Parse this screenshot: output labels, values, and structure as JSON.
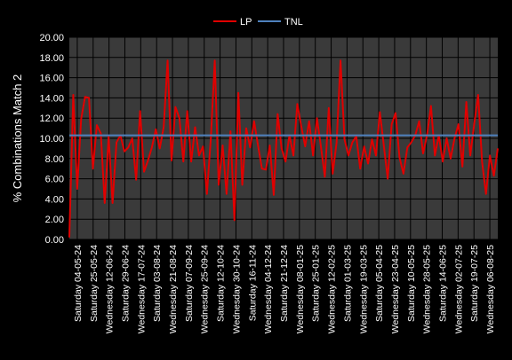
{
  "chart_data": {
    "type": "line",
    "title": "",
    "ylabel": "% Combinations Match 2",
    "xlabel": "",
    "ylim": [
      0,
      20
    ],
    "y_ticks": [
      "0.00",
      "2.00",
      "4.00",
      "6.00",
      "8.00",
      "10.00",
      "12.00",
      "14.00",
      "16.00",
      "18.00",
      "20.00"
    ],
    "x_tick_labels": [
      "Saturday 04-05-24",
      "Saturday 25-05-24",
      "Wednesday 12-06-24",
      "Saturday 29-06-24",
      "Wednesday 17-07-24",
      "Saturday 03-08-24",
      "Wednesday 21-08-24",
      "Saturday 07-09-24",
      "Wednesday 25-09-24",
      "Saturday 12-10-24",
      "Wednesday 30-10-24",
      "Saturday 16-11-24",
      "Wednesday 04-12-24",
      "Saturday 21-12-24",
      "Wednesday 08-01-25",
      "Saturday 25-01-25",
      "Wednesday 12-02-25",
      "Saturday 01-03-25",
      "Wednesday 19-03-25",
      "Saturday 05-04-25",
      "Wednesday 23-04-25",
      "Saturday 10-05-25",
      "Wednesday 28-05-25",
      "Saturday 14-06-25",
      "Wednesday 02-07-25",
      "Saturday 19-07-25",
      "Wednesday 06-08-25"
    ],
    "legend_position": "top-center",
    "grid": true,
    "series": [
      {
        "name": "LP",
        "color": "#e00000",
        "values": [
          0.2,
          14.3,
          5.0,
          11.9,
          14.1,
          14.0,
          7.0,
          11.3,
          10.5,
          3.6,
          10.2,
          3.6,
          9.6,
          10.3,
          8.7,
          9.1,
          10.0,
          5.9,
          12.7,
          6.7,
          7.8,
          9.1,
          10.9,
          9.0,
          11.1,
          17.7,
          7.8,
          13.1,
          12.0,
          7.7,
          12.7,
          7.7,
          11.1,
          8.3,
          9.2,
          4.5,
          10.0,
          17.7,
          5.4,
          9.3,
          4.5,
          10.7,
          1.9,
          14.5,
          5.4,
          11.0,
          9.1,
          11.7,
          9.3,
          7.0,
          6.9,
          9.3,
          4.4,
          12.4,
          9.0,
          7.7,
          10.3,
          8.3,
          13.4,
          11.2,
          9.2,
          11.7,
          8.3,
          12.0,
          9.2,
          6.2,
          13.0,
          6.5,
          9.6,
          17.7,
          9.9,
          8.3,
          9.6,
          10.2,
          7.0,
          9.2,
          7.5,
          9.9,
          8.3,
          12.6,
          9.3,
          6.0,
          11.4,
          12.5,
          8.1,
          6.5,
          9.1,
          9.6,
          10.3,
          11.7,
          8.5,
          10.3,
          13.2,
          8.3,
          10.3,
          7.7,
          10.0,
          8.0,
          10.0,
          11.4,
          7.2,
          13.6,
          8.3,
          11.4,
          14.3,
          7.7,
          4.5,
          8.3,
          6.3,
          9.0
        ],
        "first_date": "Saturday 04-05-24",
        "last_date": "Wednesday 06-08-25"
      },
      {
        "name": "TNL",
        "color": "#4f81bd",
        "values": [
          10.3,
          10.3
        ]
      }
    ]
  }
}
